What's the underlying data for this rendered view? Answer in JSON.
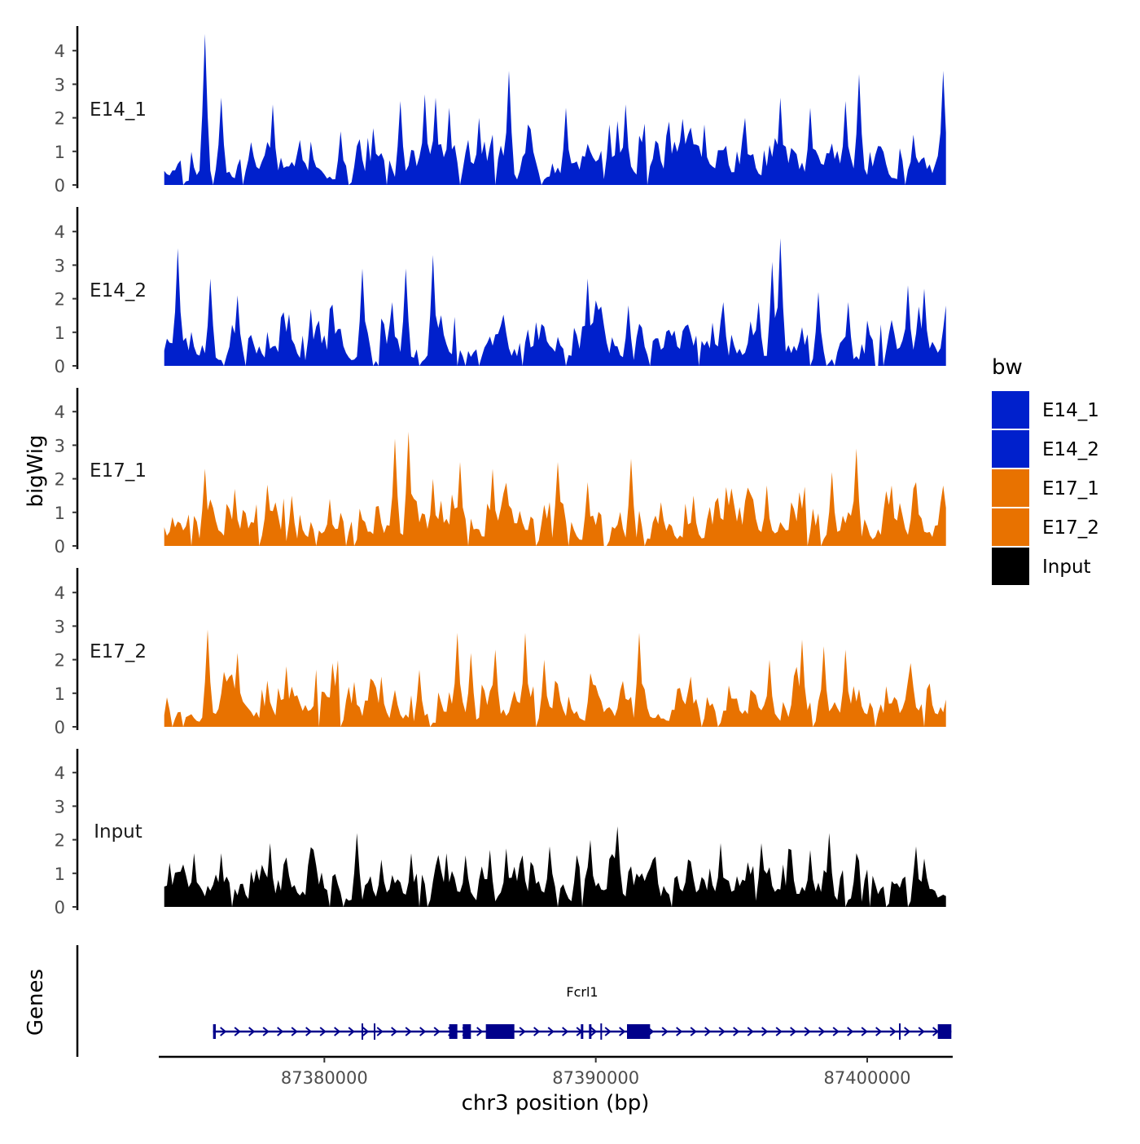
{
  "chart_data": {
    "type": "area",
    "ylabel": "bigWig",
    "genes_label": "Genes",
    "xlabel": "chr3 position (bp)",
    "xlim": [
      87373900,
      87403150
    ],
    "ylim": [
      0,
      4.5
    ],
    "yticks": [
      0,
      1,
      2,
      3,
      4
    ],
    "xticks": [
      87380000,
      87390000,
      87400000
    ],
    "xtick_labels": [
      "87380000",
      "87390000",
      "87400000"
    ],
    "legend": {
      "title": "bw",
      "items": [
        {
          "label": "E14_1",
          "color": "#0020cc"
        },
        {
          "label": "E14_2",
          "color": "#0020cc"
        },
        {
          "label": "E17_1",
          "color": "#e87200"
        },
        {
          "label": "E17_2",
          "color": "#e87200"
        },
        {
          "label": "Input",
          "color": "#000000"
        }
      ]
    },
    "tracks": [
      {
        "name": "E14_1",
        "color": "#0020cc",
        "seed": 11,
        "peaks": [
          [
            87375600,
            4.5
          ],
          [
            87376200,
            2.6
          ],
          [
            87378100,
            2.4
          ],
          [
            87380600,
            1.6
          ],
          [
            87382800,
            2.5
          ],
          [
            87383700,
            2.7
          ],
          [
            87384100,
            2.6
          ],
          [
            87384600,
            2.3
          ],
          [
            87385700,
            2.0
          ],
          [
            87386800,
            3.4
          ],
          [
            87387500,
            1.8
          ],
          [
            87388900,
            2.3
          ],
          [
            87390500,
            1.8
          ],
          [
            87391100,
            2.4
          ],
          [
            87394000,
            1.8
          ],
          [
            87395500,
            2.0
          ],
          [
            87396800,
            2.6
          ],
          [
            87397900,
            2.3
          ],
          [
            87399200,
            2.5
          ],
          [
            87399700,
            3.3
          ],
          [
            87401700,
            1.5
          ],
          [
            87402800,
            3.4
          ]
        ]
      },
      {
        "name": "E14_2",
        "color": "#0020cc",
        "seed": 23,
        "peaks": [
          [
            87374600,
            3.5
          ],
          [
            87375800,
            2.6
          ],
          [
            87376800,
            2.1
          ],
          [
            87379500,
            1.7
          ],
          [
            87381400,
            2.9
          ],
          [
            87382500,
            1.9
          ],
          [
            87383000,
            2.9
          ],
          [
            87384000,
            3.3
          ],
          [
            87387800,
            1.3
          ],
          [
            87389700,
            2.6
          ],
          [
            87391200,
            1.8
          ],
          [
            87394700,
            1.9
          ],
          [
            87396000,
            1.9
          ],
          [
            87396500,
            3.1
          ],
          [
            87396800,
            3.8
          ],
          [
            87398200,
            2.2
          ],
          [
            87399300,
            1.9
          ],
          [
            87401500,
            2.4
          ],
          [
            87402100,
            2.3
          ]
        ]
      },
      {
        "name": "E17_1",
        "color": "#e87200",
        "seed": 37,
        "peaks": [
          [
            87375600,
            2.3
          ],
          [
            87376700,
            1.7
          ],
          [
            87378800,
            1.5
          ],
          [
            87380200,
            1.4
          ],
          [
            87382600,
            3.2
          ],
          [
            87383100,
            3.4
          ],
          [
            87384000,
            2.0
          ],
          [
            87385000,
            2.5
          ],
          [
            87386200,
            2.3
          ],
          [
            87386700,
            1.8
          ],
          [
            87388600,
            2.5
          ],
          [
            87389700,
            1.9
          ],
          [
            87391300,
            2.6
          ],
          [
            87393600,
            1.5
          ],
          [
            87396300,
            1.8
          ],
          [
            87397500,
            1.6
          ],
          [
            87398700,
            2.2
          ],
          [
            87399600,
            2.9
          ],
          [
            87400900,
            1.8
          ],
          [
            87401800,
            1.9
          ]
        ]
      },
      {
        "name": "E17_2",
        "color": "#e87200",
        "seed": 53,
        "peaks": [
          [
            87375700,
            2.9
          ],
          [
            87376800,
            2.2
          ],
          [
            87378600,
            1.8
          ],
          [
            87380300,
            1.9
          ],
          [
            87382100,
            1.5
          ],
          [
            87383500,
            1.7
          ],
          [
            87384900,
            2.8
          ],
          [
            87385400,
            2.2
          ],
          [
            87386300,
            2.3
          ],
          [
            87387400,
            2.8
          ],
          [
            87388100,
            2.0
          ],
          [
            87389800,
            1.6
          ],
          [
            87391600,
            2.8
          ],
          [
            87393500,
            1.5
          ],
          [
            87396400,
            2.0
          ],
          [
            87397600,
            2.6
          ],
          [
            87398400,
            2.4
          ],
          [
            87399200,
            2.3
          ],
          [
            87401600,
            1.9
          ]
        ]
      },
      {
        "name": "Input",
        "color": "#000000",
        "seed": 71,
        "peaks": [
          [
            87375200,
            1.6
          ],
          [
            87376200,
            1.6
          ],
          [
            87378000,
            1.9
          ],
          [
            87379600,
            1.7
          ],
          [
            87381200,
            2.2
          ],
          [
            87383200,
            1.6
          ],
          [
            87384500,
            1.6
          ],
          [
            87386100,
            1.7
          ],
          [
            87388300,
            1.8
          ],
          [
            87389800,
            2.0
          ],
          [
            87390800,
            2.4
          ],
          [
            87392200,
            1.5
          ],
          [
            87394600,
            1.9
          ],
          [
            87396100,
            1.9
          ],
          [
            87397200,
            1.7
          ],
          [
            87398600,
            2.2
          ],
          [
            87399600,
            1.6
          ],
          [
            87401800,
            1.8
          ]
        ]
      }
    ],
    "gene": {
      "name": "Fcrl1",
      "color": "#00008b",
      "start": 87375900,
      "end": 87403100,
      "strand": "+",
      "exons": [
        [
          87375900,
          87376000
        ],
        [
          87384600,
          87384900
        ],
        [
          87385100,
          87385400
        ],
        [
          87385950,
          87387000
        ],
        [
          87389450,
          87389520
        ],
        [
          87389750,
          87389820
        ],
        [
          87391150,
          87392000
        ],
        [
          87402600,
          87403100
        ]
      ],
      "minor_ticks": [
        87381400,
        87381850,
        87390200,
        87401200
      ]
    }
  }
}
